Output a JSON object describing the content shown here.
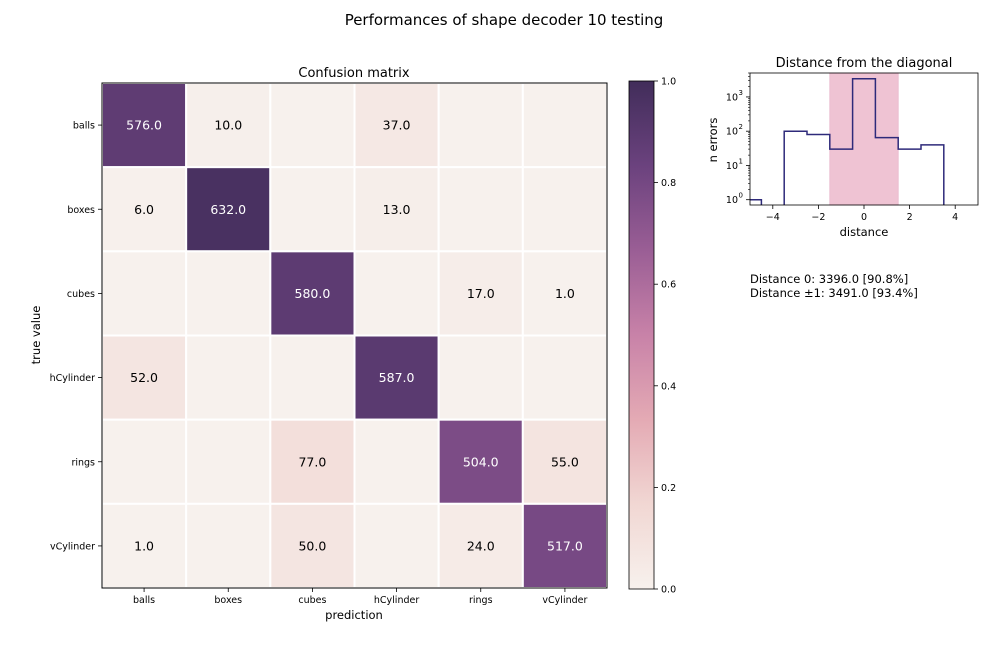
{
  "figure_title": "Performances of shape decoder 10 testing",
  "stats": {
    "line1": "Distance 0: 3396.0 [90.8%]",
    "line2": "Distance ±1: 3491.0 [93.4%]"
  },
  "chart_data": [
    {
      "type": "heatmap",
      "title": "Confusion matrix",
      "xlabel": "prediction",
      "ylabel": "true value",
      "x_categories": [
        "balls",
        "boxes",
        "cubes",
        "hCylinder",
        "rings",
        "vCylinder"
      ],
      "y_categories": [
        "balls",
        "boxes",
        "cubes",
        "hCylinder",
        "rings",
        "vCylinder"
      ],
      "values": [
        [
          576.0,
          10.0,
          0,
          37.0,
          0,
          0
        ],
        [
          6.0,
          632.0,
          0,
          13.0,
          0,
          0
        ],
        [
          0,
          0,
          580.0,
          0,
          17.0,
          1.0
        ],
        [
          52.0,
          0,
          0,
          587.0,
          0,
          0
        ],
        [
          0,
          0,
          77.0,
          0,
          504.0,
          55.0
        ],
        [
          1.0,
          0,
          50.0,
          0,
          24.0,
          517.0
        ]
      ],
      "normalized_max": 653.0,
      "colorbar": {
        "range": [
          0.0,
          1.0
        ],
        "ticks": [
          "0.0",
          "0.2",
          "0.4",
          "0.6",
          "0.8",
          "1.0"
        ],
        "colors": [
          "#f7f1ed",
          "#f1d7d3",
          "#e4aab4",
          "#c882a8",
          "#9a5e95",
          "#6b427e",
          "#412d5a"
        ]
      },
      "cell_text_light": "#ffffff",
      "cell_text_dark": "#000000"
    },
    {
      "type": "line",
      "subtype": "step-histogram",
      "title": "Distance from the diagonal",
      "xlabel": "distance",
      "ylabel": "n errors",
      "yscale": "log",
      "xlim": [
        -5,
        5
      ],
      "ylim": [
        0.7,
        5000
      ],
      "x_ticks": [
        "−4",
        "−2",
        "0",
        "2",
        "4"
      ],
      "y_ticks": [
        "10",
        "10",
        "10",
        "10"
      ],
      "y_tick_exponents": [
        "0",
        "1",
        "2",
        "3"
      ],
      "bins": [
        {
          "x": -5,
          "value": 1
        },
        {
          "x": -4,
          "value": 0
        },
        {
          "x": -3,
          "value": 100
        },
        {
          "x": -2,
          "value": 80
        },
        {
          "x": -1,
          "value": 30
        },
        {
          "x": 0,
          "value": 3396
        },
        {
          "x": 1,
          "value": 65
        },
        {
          "x": 2,
          "value": 30
        },
        {
          "x": 3,
          "value": 40
        },
        {
          "x": 4,
          "value": 0
        }
      ],
      "highlight_range": [
        -1.5,
        1.5
      ],
      "line_color": "#2e2a7a",
      "highlight_color": "#efc3d3"
    }
  ]
}
